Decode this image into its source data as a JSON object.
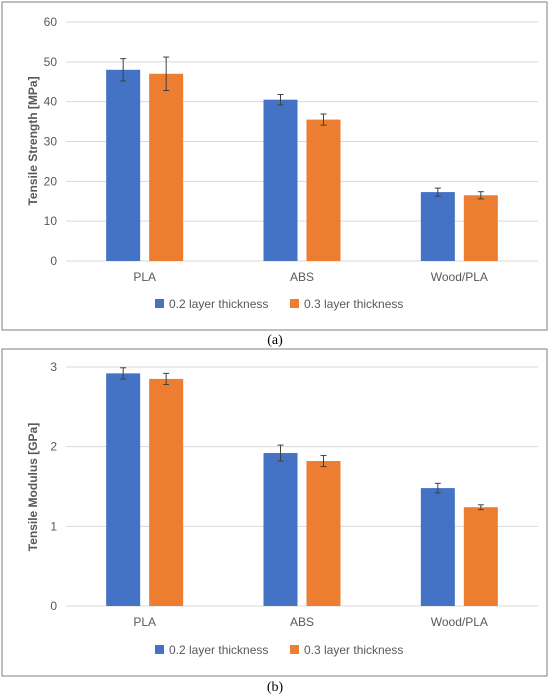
{
  "chart_data": [
    {
      "type": "bar",
      "panel_label": "(a)",
      "ylabel": "Tensile Strength [MPa]",
      "xlabel": "",
      "ylim": [
        0,
        60
      ],
      "yticks": [
        0,
        10,
        20,
        30,
        40,
        50,
        60
      ],
      "categories": [
        "PLA",
        "ABS",
        "Wood/PLA"
      ],
      "grid": true,
      "legend_position": "bottom",
      "series": [
        {
          "name": "0.2 layer thickness",
          "color": "#4472C4",
          "values": [
            48,
            40.5,
            17.3
          ],
          "errors": [
            2.8,
            1.3,
            1.0
          ]
        },
        {
          "name": "0.3 layer thickness",
          "color": "#ED7D31",
          "values": [
            47,
            35.5,
            16.5
          ],
          "errors": [
            4.2,
            1.4,
            0.9
          ]
        }
      ]
    },
    {
      "type": "bar",
      "panel_label": "(b)",
      "ylabel": "Tensile Modulus [GPa]",
      "xlabel": "",
      "ylim": [
        0,
        3
      ],
      "yticks": [
        0,
        1,
        2,
        3
      ],
      "categories": [
        "PLA",
        "ABS",
        "Wood/PLA"
      ],
      "grid": true,
      "legend_position": "bottom",
      "series": [
        {
          "name": "0.2 layer thickness",
          "color": "#4472C4",
          "values": [
            2.92,
            1.92,
            1.48
          ],
          "errors": [
            0.07,
            0.1,
            0.06
          ]
        },
        {
          "name": "0.3 layer thickness",
          "color": "#ED7D31",
          "values": [
            2.85,
            1.82,
            1.24
          ],
          "errors": [
            0.07,
            0.07,
            0.03
          ]
        }
      ]
    }
  ]
}
